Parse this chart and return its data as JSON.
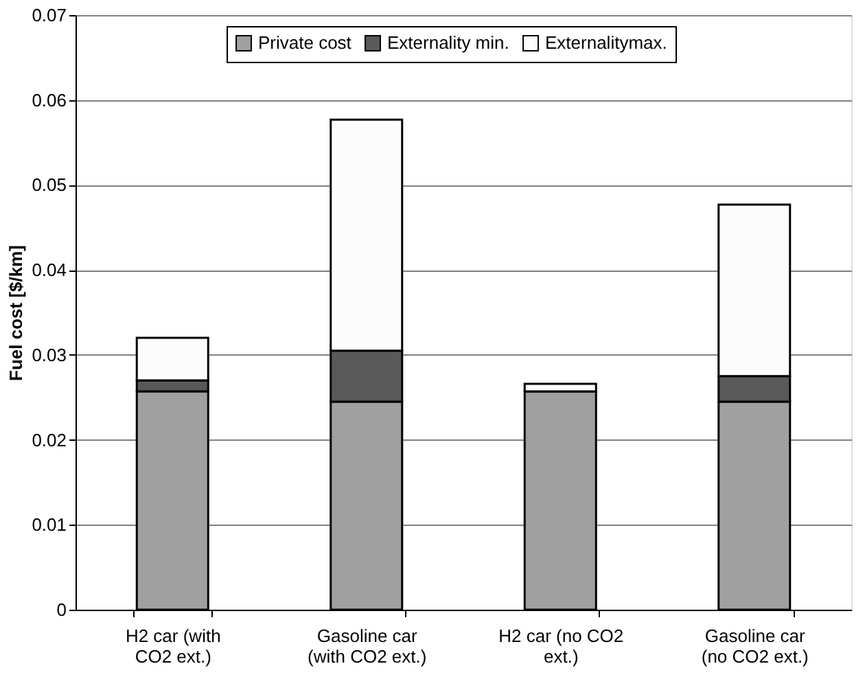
{
  "chart_data": {
    "type": "bar",
    "stacked": true,
    "ylabel": "Fuel cost [$/km]",
    "categories": [
      "H2 car (with\nCO2 ext.)",
      "Gasoline car\n(with CO2 ext.)",
      "H2 car (no CO2\next.)",
      "Gasoline car\n(no CO2 ext.)"
    ],
    "series": [
      {
        "name": "Private cost",
        "color": "#a0a0a0",
        "values": [
          0.0257,
          0.0245,
          0.0257,
          0.0245
        ]
      },
      {
        "name": "Externality min.",
        "color": "#595959",
        "values": [
          0.0013,
          0.006,
          0,
          0.003
        ]
      },
      {
        "name": "Externalitymax.",
        "color": "#fcfcfc",
        "values": [
          0.005,
          0.0272,
          0.0009,
          0.0202
        ]
      }
    ],
    "ylim": [
      0,
      0.07
    ],
    "yticks": [
      0,
      0.01,
      0.02,
      0.03,
      0.04,
      0.05,
      0.06,
      0.07
    ],
    "grid": "y",
    "legend": "top"
  }
}
